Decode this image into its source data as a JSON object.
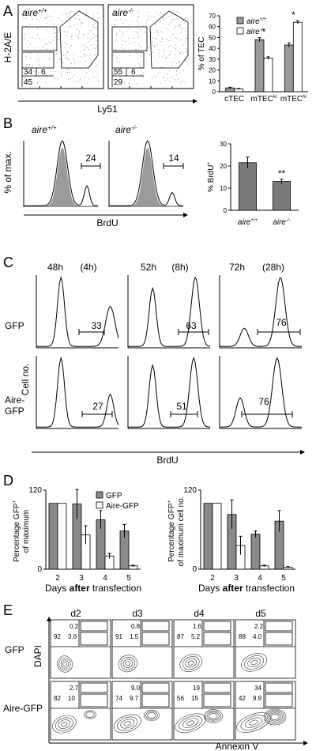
{
  "panels": [
    "A",
    "B",
    "C",
    "D",
    "E"
  ],
  "A": {
    "y_axis": "H-2A/E",
    "x_axis": "Ly51",
    "plots": [
      {
        "genotype": "aire",
        "sup": "+/+",
        "gates": [
          "34",
          "6",
          "45"
        ]
      },
      {
        "genotype": "aire",
        "sup": "-/-",
        "gates": [
          "55",
          "6",
          "29"
        ]
      }
    ],
    "chart_data": {
      "type": "bar",
      "categories": [
        "cTEC",
        "mTEClo",
        "mTEChi"
      ],
      "category_labels": [
        {
          "t": "cTEC",
          "s": ""
        },
        {
          "t": "mTEC",
          "s": "lo"
        },
        {
          "t": "mTEC",
          "s": "hi"
        }
      ],
      "ylabel": "% of TEC",
      "ylim": [
        0,
        70
      ],
      "yticks": [
        "0",
        "10",
        "20",
        "30",
        "40",
        "50",
        "60",
        "70"
      ],
      "series": [
        {
          "name": "aire+/+",
          "name_main": "aire",
          "name_sup": "+/+",
          "color": "#9a9a9a",
          "values": [
            3.5,
            48,
            43
          ],
          "errors": [
            0.6,
            1.8,
            2.0
          ]
        },
        {
          "name": "aire-/-",
          "name_main": "aire",
          "name_sup": "-/-",
          "color": "#ffffff",
          "values": [
            2.5,
            31,
            64
          ],
          "errors": [
            0.4,
            1.2,
            1.5
          ]
        }
      ],
      "significance": [
        "",
        "*",
        "*"
      ]
    }
  },
  "B": {
    "y_axis": "% of max.",
    "x_axis": "BrdU",
    "plots": [
      {
        "genotype": "aire",
        "sup": "+/+",
        "gate": "24"
      },
      {
        "genotype": "aire",
        "sup": "-/-",
        "gate": "14"
      }
    ],
    "chart_data": {
      "type": "bar",
      "ylabel_main": "% BrdU",
      "ylabel_sup": "+",
      "ylim": [
        0,
        30
      ],
      "yticks": [
        "0",
        "10",
        "20",
        "30"
      ],
      "categories": [
        "aire+/+",
        "aire-/-"
      ],
      "category_labels": [
        {
          "t": "aire",
          "s": "+/+"
        },
        {
          "t": "aire",
          "s": "-/-"
        }
      ],
      "values": [
        21.5,
        13
      ],
      "errors": [
        2.5,
        1.1
      ],
      "color": "#7a7a7a",
      "significance": [
        "",
        "**"
      ]
    }
  },
  "C": {
    "y_axis": "Cell no.",
    "x_axis": "BrdU",
    "row_labels": [
      "GFP",
      "Aire-",
      "GFP"
    ],
    "columns": [
      {
        "time": "48h",
        "pulse": "(4h)"
      },
      {
        "time": "52h",
        "pulse": "(8h)"
      },
      {
        "time": "72h",
        "pulse": "(28h)"
      }
    ],
    "gates": [
      [
        "33",
        "63",
        "76"
      ],
      [
        "27",
        "51",
        "76"
      ]
    ]
  },
  "D": {
    "xlabel_a": "Days ",
    "xlabel_b": "after",
    "xlabel_c": " transfection",
    "chart_data": [
      {
        "type": "bar",
        "ylabel_lines": [
          {
            "t": "Percentage GFP",
            "s": "+"
          },
          {
            "t": "of maximum",
            "s": ""
          }
        ],
        "ylim": [
          0,
          120
        ],
        "yticks": [
          "0",
          "120"
        ],
        "categories": [
          "2",
          "3",
          "4",
          "5"
        ],
        "series": [
          {
            "name": "GFP",
            "color": "#8a8a8a",
            "values": [
              100,
              99,
              75,
              58
            ],
            "errors": [
              0,
              22,
              14,
              10
            ]
          },
          {
            "name": "Aire-GFP",
            "color": "#ffffff",
            "values": [
              100,
              52,
              20,
              5
            ],
            "errors": [
              0,
              14,
              4,
              1
            ]
          }
        ],
        "legend": "top-right"
      },
      {
        "type": "bar",
        "ylabel_lines": [
          {
            "t": "Percentage GFP",
            "s": "+"
          },
          {
            "t": "of maximum cell no.",
            "s": ""
          }
        ],
        "ylim": [
          0,
          120
        ],
        "yticks": [
          "0",
          "120"
        ],
        "categories": [
          "2",
          "3",
          "4",
          "5"
        ],
        "series": [
          {
            "name": "GFP",
            "color": "#8a8a8a",
            "values": [
              100,
              83,
              53,
              73
            ],
            "errors": [
              0,
              22,
              5,
              16
            ]
          },
          {
            "name": "Aire-GFP",
            "color": "#ffffff",
            "values": [
              100,
              36,
              5,
              3
            ],
            "errors": [
              0,
              14,
              1,
              1
            ]
          }
        ]
      }
    ]
  },
  "E": {
    "y_axis": "DAPI",
    "x_axis": "Annexin V",
    "days": [
      "d2",
      "d3",
      "d4",
      "d5"
    ],
    "row_labels": [
      "GFP",
      "Aire-GFP"
    ],
    "quadrants": [
      [
        [
          "0.2",
          "92",
          "3.6"
        ],
        [
          "0.8",
          "91",
          "1.5"
        ],
        [
          "1.6",
          "87",
          "5.2"
        ],
        [
          "2.2",
          "88",
          "4.0"
        ]
      ],
      [
        [
          "2.7",
          "82",
          "10"
        ],
        [
          "9.0",
          "74",
          "9.7"
        ],
        [
          "19",
          "56",
          "15"
        ],
        [
          "34",
          "42",
          "9.9"
        ]
      ]
    ]
  }
}
